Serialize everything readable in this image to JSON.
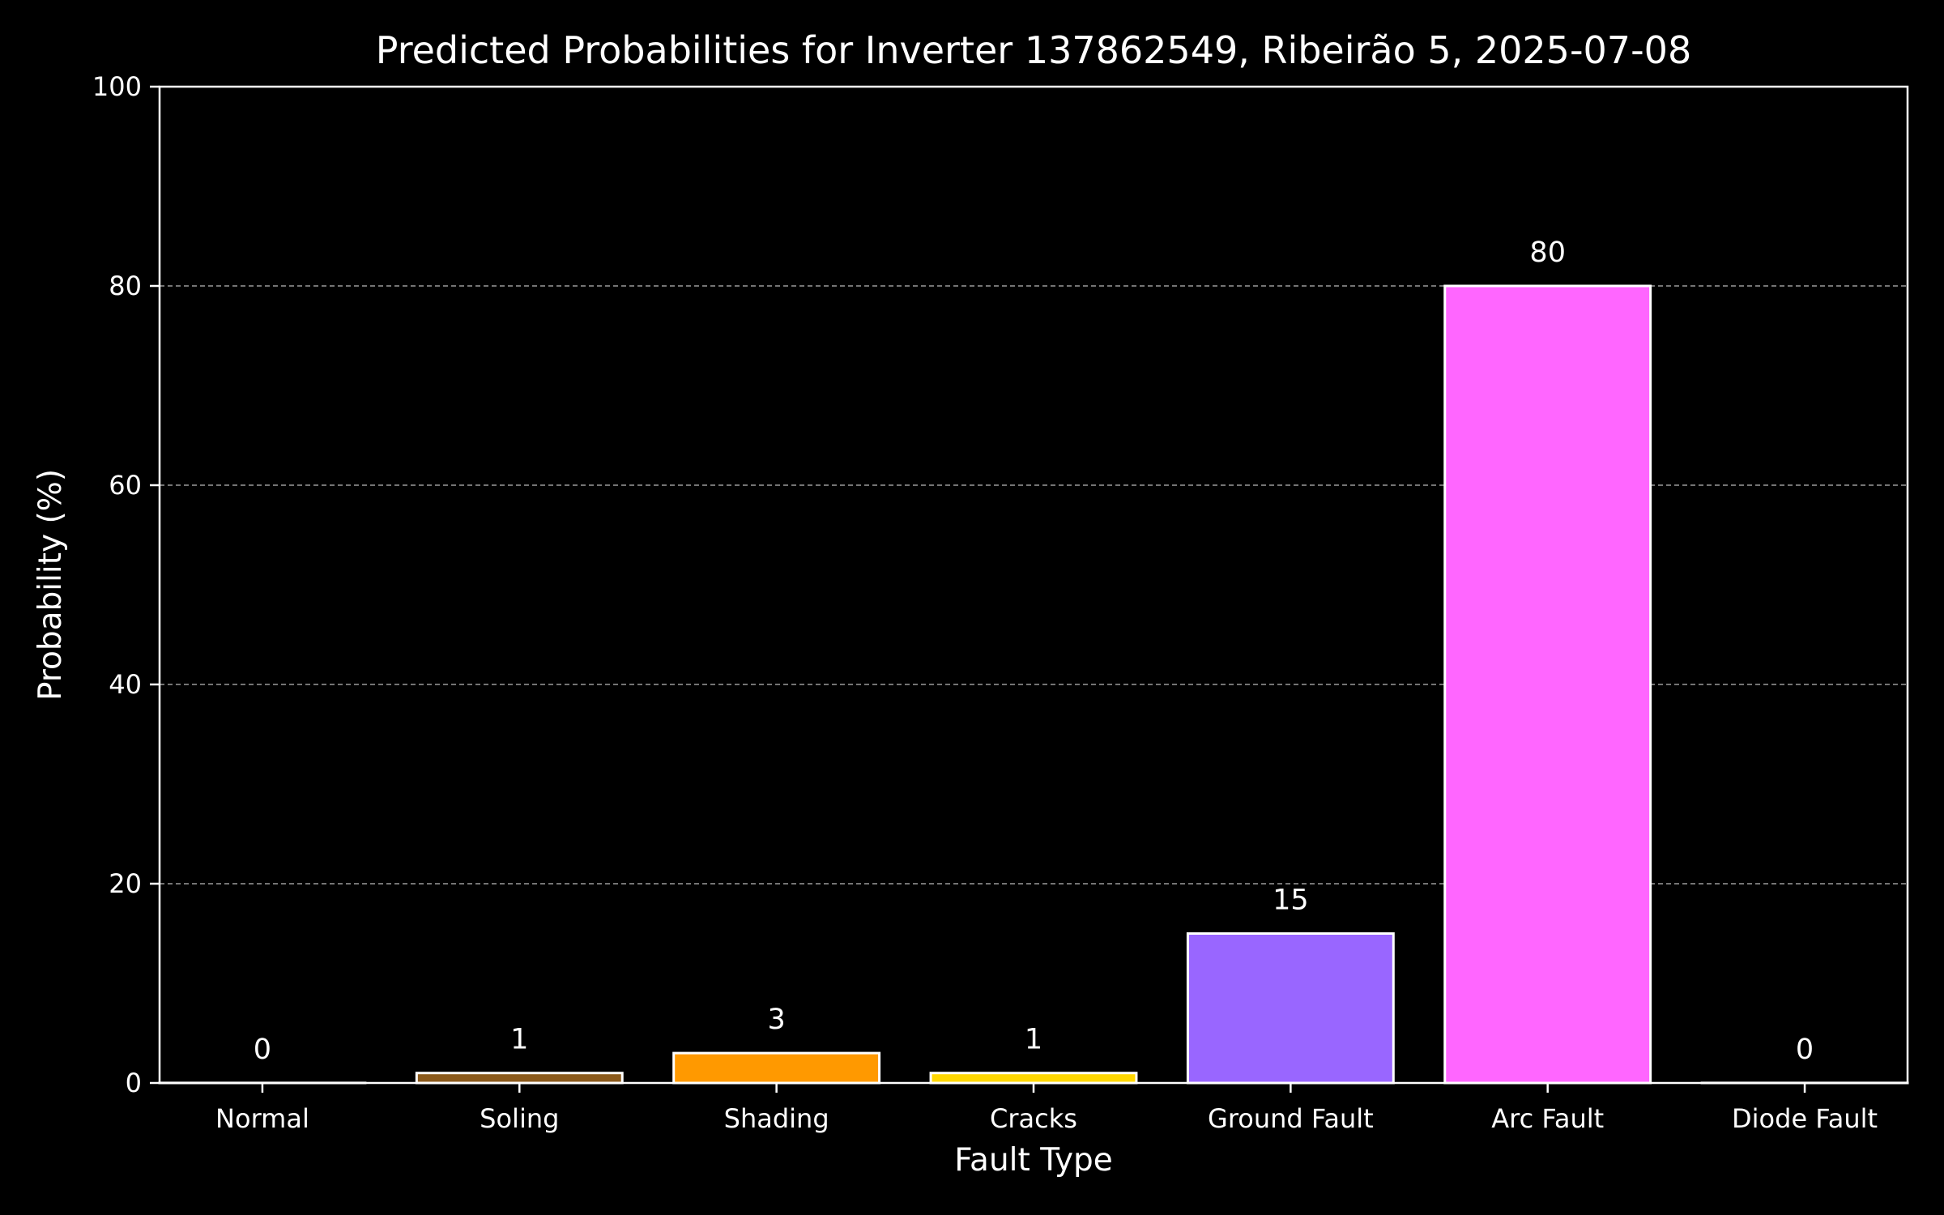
{
  "chart_data": {
    "type": "bar",
    "title": "Predicted Probabilities for Inverter 137862549, Ribeirão 5, 2025-07-08",
    "xlabel": "Fault Type",
    "ylabel": "Probability (%)",
    "ylim": [
      0,
      100
    ],
    "yticks": [
      0,
      20,
      40,
      60,
      80,
      100
    ],
    "grid": "y-dashed",
    "categories": [
      "Normal",
      "Soling",
      "Shading",
      "Cracks",
      "Ground Fault",
      "Arc Fault",
      "Diode Fault"
    ],
    "values": [
      0,
      1,
      3,
      1,
      15,
      80,
      0
    ],
    "value_labels": [
      "0",
      "1",
      "3",
      "1",
      "15",
      "80",
      "0"
    ],
    "colors": [
      "#2ca02c",
      "#8b5a1b",
      "#ff9900",
      "#ffd700",
      "#9966ff",
      "#ff66ff",
      "#d62728"
    ],
    "background": "#000000",
    "foreground": "#ffffff"
  }
}
